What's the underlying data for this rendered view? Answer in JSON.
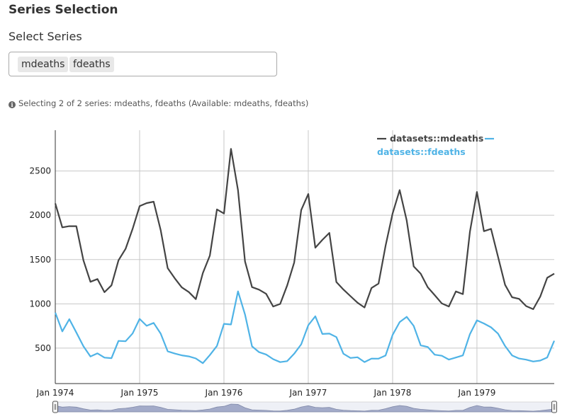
{
  "page": {
    "section_title": "Series Selection",
    "select_label": "Select Series",
    "selected_tags": [
      "mdeaths",
      "fdeaths"
    ],
    "help_text": "Selecting 2 of 2 series: mdeaths, fdeaths (Available: mdeaths, fdeaths)",
    "info_icon": "info-icon"
  },
  "chart_data": {
    "type": "line",
    "x": [
      "Jan 1974",
      "Feb 1974",
      "Mar 1974",
      "Apr 1974",
      "May 1974",
      "Jun 1974",
      "Jul 1974",
      "Aug 1974",
      "Sep 1974",
      "Oct 1974",
      "Nov 1974",
      "Dec 1974",
      "Jan 1975",
      "Feb 1975",
      "Mar 1975",
      "Apr 1975",
      "May 1975",
      "Jun 1975",
      "Jul 1975",
      "Aug 1975",
      "Sep 1975",
      "Oct 1975",
      "Nov 1975",
      "Dec 1975",
      "Jan 1976",
      "Feb 1976",
      "Mar 1976",
      "Apr 1976",
      "May 1976",
      "Jun 1976",
      "Jul 1976",
      "Aug 1976",
      "Sep 1976",
      "Oct 1976",
      "Nov 1976",
      "Dec 1976",
      "Jan 1977",
      "Feb 1977",
      "Mar 1977",
      "Apr 1977",
      "May 1977",
      "Jun 1977",
      "Jul 1977",
      "Aug 1977",
      "Sep 1977",
      "Oct 1977",
      "Nov 1977",
      "Dec 1977",
      "Jan 1978",
      "Feb 1978",
      "Mar 1978",
      "Apr 1978",
      "May 1978",
      "Jun 1978",
      "Jul 1978",
      "Aug 1978",
      "Sep 1978",
      "Oct 1978",
      "Nov 1978",
      "Dec 1978",
      "Jan 1979",
      "Feb 1979",
      "Mar 1979",
      "Apr 1979",
      "May 1979",
      "Jun 1979",
      "Jul 1979",
      "Aug 1979",
      "Sep 1979",
      "Oct 1979",
      "Nov 1979",
      "Dec 1979"
    ],
    "series": [
      {
        "name": "datasets::mdeaths",
        "color": "#444444",
        "values": [
          2134,
          1863,
          1877,
          1877,
          1492,
          1249,
          1280,
          1131,
          1209,
          1492,
          1621,
          1846,
          2103,
          2137,
          2153,
          1833,
          1403,
          1288,
          1186,
          1133,
          1053,
          1347,
          1545,
          2066,
          2020,
          2750,
          2283,
          1479,
          1189,
          1160,
          1113,
          970,
          999,
          1208,
          1467,
          2059,
          2240,
          1634,
          1722,
          1801,
          1246,
          1162,
          1087,
          1013,
          959,
          1179,
          1229,
          1655,
          2019,
          2284,
          1942,
          1423,
          1340,
          1187,
          1098,
          1004,
          970,
          1140,
          1110,
          1812,
          2263,
          1820,
          1846,
          1531,
          1215,
          1075,
          1056,
          975,
          940,
          1081,
          1294,
          1341
        ]
      },
      {
        "name": "datasets::fdeaths",
        "color": "#4fb3e6",
        "values": [
          901,
          689,
          827,
          677,
          522,
          406,
          441,
          393,
          387,
          582,
          578,
          666,
          830,
          752,
          785,
          664,
          464,
          439,
          419,
          407,
          384,
          330,
          422,
          525,
          774,
          767,
          1141,
          880,
          520,
          455,
          428,
          376,
          342,
          353,
          437,
          543,
          759,
          860,
          660,
          664,
          625,
          437,
          389,
          397,
          343,
          382,
          381,
          416,
          649,
          794,
          853,
          751,
          531,
          513,
          426,
          414,
          371,
          394,
          418,
          658,
          814,
          778,
          735,
          664,
          524,
          418,
          383,
          370,
          349,
          360,
          395,
          583
        ]
      }
    ],
    "x_tick_labels": [
      "Jan 1974",
      "Jan 1975",
      "Jan 1976",
      "Jan 1977",
      "Jan 1978",
      "Jan 1979"
    ],
    "y_ticks": [
      500,
      1000,
      1500,
      2000,
      2500
    ],
    "ylim": [
      100,
      2960
    ],
    "grid": true,
    "legend_position": "top-right",
    "range_selector": true
  }
}
